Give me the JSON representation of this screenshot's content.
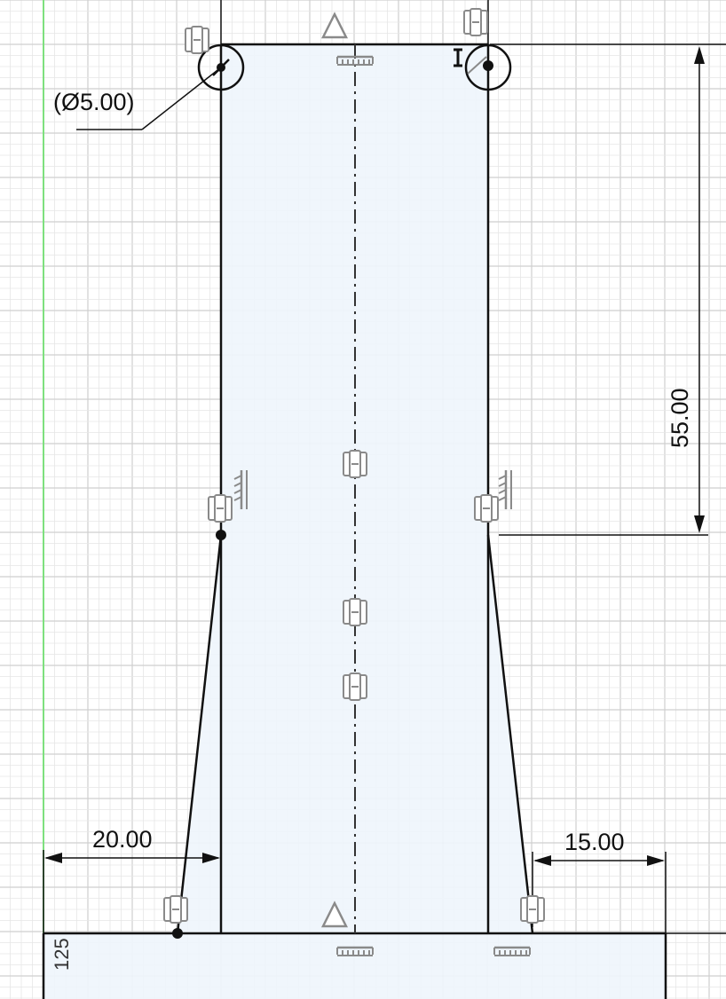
{
  "colors": {
    "background": "#ffffff",
    "grid_minor": "#e6e6e6",
    "grid_major": "#cfcfcf",
    "origin_axis": "#7ee07e",
    "profile_fill": "#eef5fc",
    "sketch_line": "#111111",
    "constraint_glyph": "#8a8a8a",
    "dim_text": "#111111"
  },
  "dimensions": {
    "diameter": "(Ø5.00)",
    "height": "55.00",
    "left_offset": "20.00",
    "right_offset": "15.00",
    "partial_value": "125"
  },
  "icons": {
    "coincident": "coincident-constraint-icon",
    "parallel": "parallel-constraint-icon",
    "horizontal": "horizontal-constraint-icon",
    "triangle": "triangle-constraint-icon",
    "diameter": "diameter-constraint-icon"
  }
}
